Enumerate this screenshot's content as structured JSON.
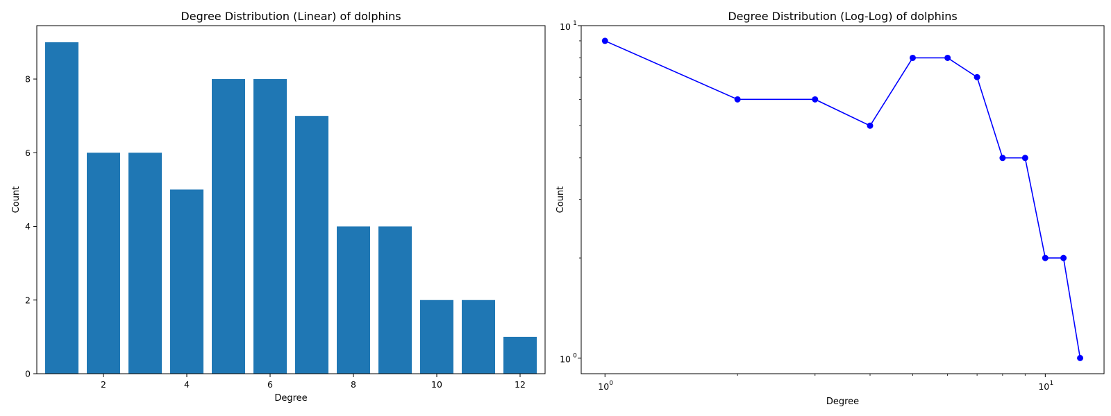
{
  "chart_data": [
    {
      "type": "bar",
      "title": "Degree Distribution (Linear) of dolphins",
      "xlabel": "Degree",
      "ylabel": "Count",
      "categories": [
        1,
        2,
        3,
        4,
        5,
        6,
        7,
        8,
        9,
        10,
        11,
        12
      ],
      "values": [
        9,
        6,
        6,
        5,
        8,
        8,
        7,
        4,
        4,
        2,
        2,
        1
      ],
      "xlim": [
        0.4,
        12.6
      ],
      "ylim": [
        0,
        9.45
      ],
      "xticks": [
        2,
        4,
        6,
        8,
        10,
        12
      ],
      "yticks": [
        0,
        2,
        4,
        6,
        8
      ],
      "grid": false,
      "color": "#1f77b4"
    },
    {
      "type": "line",
      "title": "Degree Distribution (Log-Log) of dolphins",
      "xlabel": "Degree",
      "ylabel": "Count",
      "xscale": "log",
      "yscale": "log",
      "x": [
        1,
        2,
        3,
        4,
        5,
        6,
        7,
        8,
        9,
        10,
        11,
        12
      ],
      "y": [
        9,
        6,
        6,
        5,
        8,
        8,
        7,
        4,
        4,
        2,
        2,
        1
      ],
      "xlim": [
        0.883,
        13.6
      ],
      "ylim": [
        0.897,
        10
      ],
      "xticks": [
        {
          "base": "10",
          "exp": "0",
          "value": 1
        },
        {
          "base": "10",
          "exp": "1",
          "value": 10
        }
      ],
      "yticks": [
        {
          "base": "10",
          "exp": "0",
          "value": 1
        },
        {
          "base": "10",
          "exp": "1",
          "value": 10
        }
      ],
      "marker": "circle",
      "grid": false,
      "color": "#0000ff"
    }
  ]
}
